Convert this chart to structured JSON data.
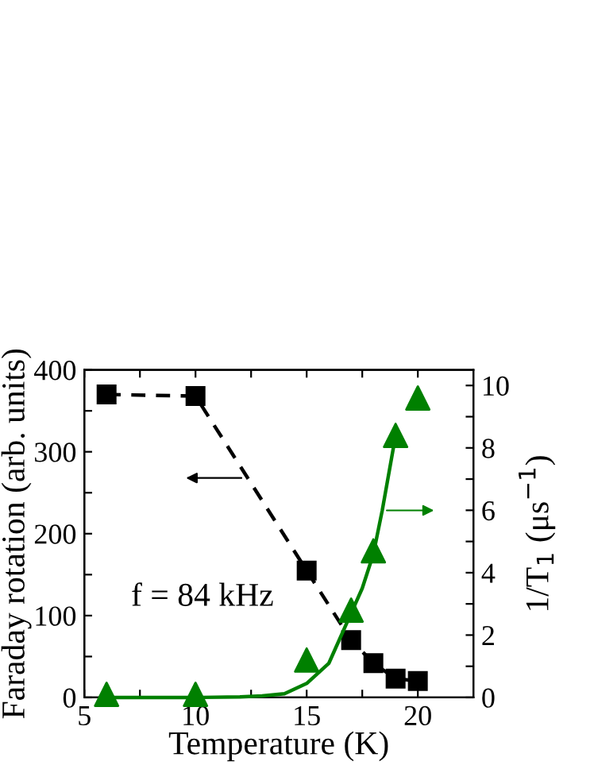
{
  "chart_data": {
    "type": "line",
    "xlabel": "Temperature (K)",
    "ylabel": "Faraday rotation (arb. units)",
    "y2label": "1/T$_{1}$ (μs$^{−1}$)",
    "annotations": [
      "f = 84 kHz"
    ],
    "xlim": [
      5,
      22.5
    ],
    "xticks": [
      5,
      {
        "value": 7.5,
        "label": null
      },
      10,
      {
        "value": 12.5,
        "label": null
      },
      15,
      {
        "value": 17.5,
        "label": null
      },
      20
    ],
    "ylim": [
      0,
      400
    ],
    "yticks": [
      0,
      {
        "value": 50,
        "label": null
      },
      100,
      {
        "value": 150,
        "label": null
      },
      200,
      {
        "value": 250,
        "label": null
      },
      300,
      {
        "value": 350,
        "label": null
      },
      400
    ],
    "y2lim": [
      0,
      10.5
    ],
    "y2ticks": [
      0,
      {
        "value": 1,
        "label": null
      },
      2,
      {
        "value": 3,
        "label": null
      },
      4,
      {
        "value": 5,
        "label": null
      },
      6,
      {
        "value": 7,
        "label": null
      },
      8,
      {
        "value": 9,
        "label": null
      },
      10
    ],
    "grid": false,
    "legend": false,
    "series": [
      {
        "color": "#000000",
        "marker": "square",
        "line_style": "dashed",
        "x": [
          6,
          10,
          15,
          17,
          18,
          19,
          20
        ],
        "values": [
          370,
          368,
          155,
          70,
          42,
          23,
          20
        ]
      },
      {
        "type": "scatter",
        "axis": "y2",
        "color": "#008000",
        "marker": "triangle",
        "x": [
          6,
          10,
          15,
          17,
          18,
          19,
          20
        ],
        "values": [
          0.1,
          0.1,
          1.2,
          2.8,
          4.7,
          8.4,
          9.6
        ]
      },
      {
        "type": "line",
        "axis": "y2",
        "color": "#008000",
        "marker": "none",
        "line_style": "solid",
        "x": [
          6,
          10,
          12,
          13,
          14,
          15,
          16,
          17,
          17.5,
          18,
          18.4,
          19
        ],
        "values": [
          0,
          0,
          0.02,
          0.05,
          0.12,
          0.45,
          1.1,
          2.7,
          3.5,
          4.6,
          6.0,
          8.4
        ]
      }
    ]
  }
}
